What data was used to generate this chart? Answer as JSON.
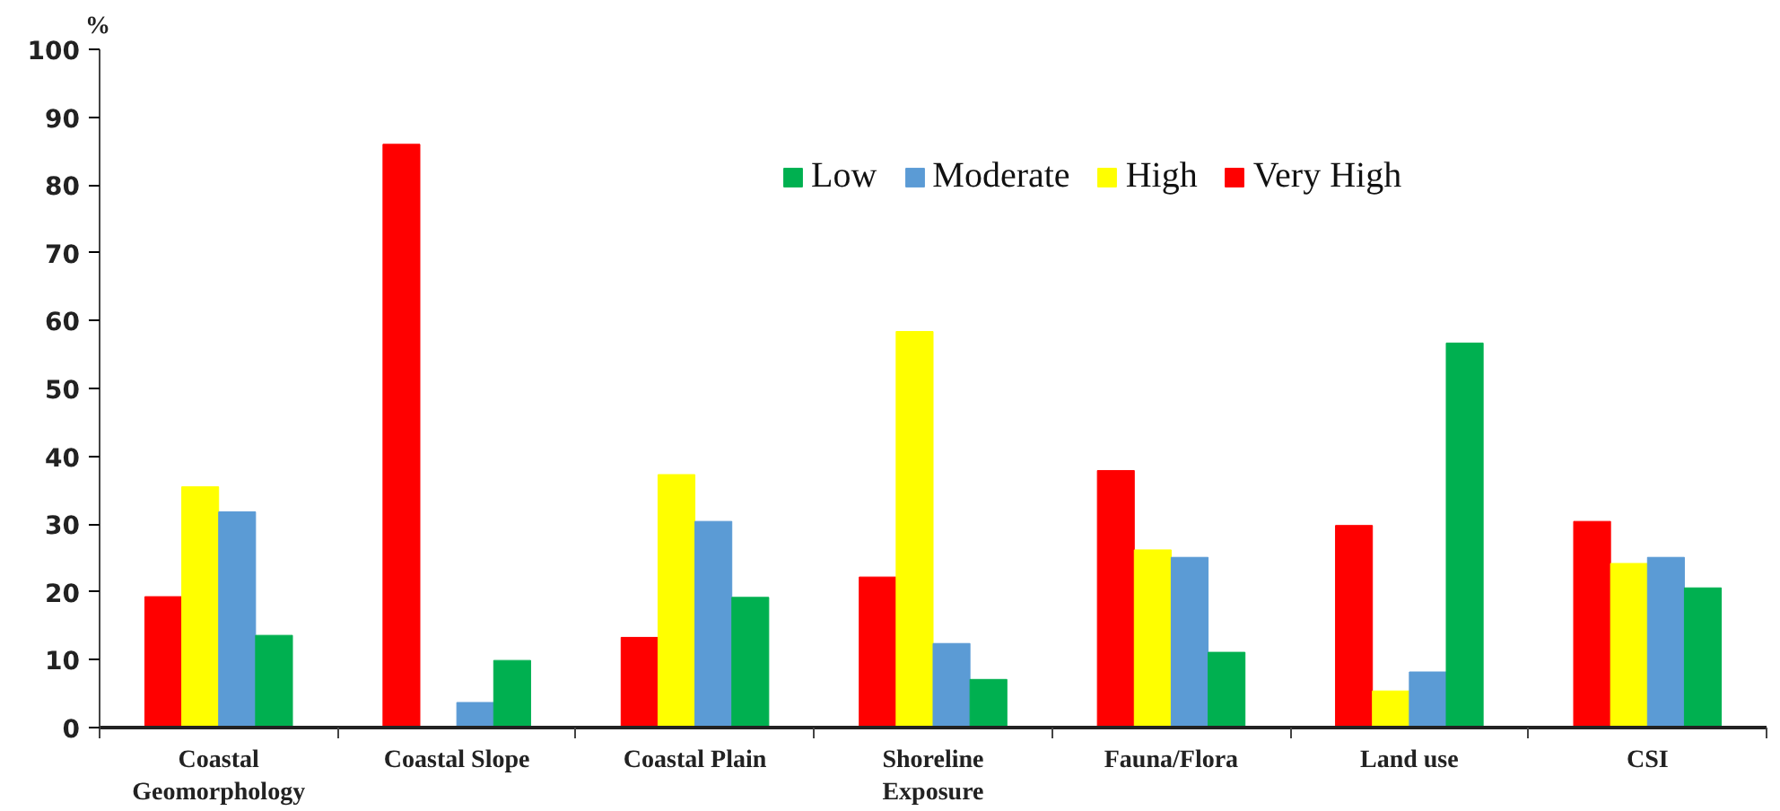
{
  "chart_data": {
    "type": "bar",
    "ylabel": "%",
    "categories": [
      "Coastal Geomorphology",
      "Coastal Slope",
      "Coastal Plain",
      "Shoreline Exposure",
      "Fauna/Flora",
      "Land use",
      "CSI"
    ],
    "series": [
      {
        "name": "Very High",
        "color": "#ff0000",
        "values": [
          19.3,
          86.0,
          13.3,
          22.2,
          37.9,
          29.8,
          30.4
        ]
      },
      {
        "name": "High",
        "color": "#ffff00",
        "values": [
          35.5,
          0,
          37.3,
          58.4,
          26.2,
          5.4,
          24.2
        ]
      },
      {
        "name": "Moderate",
        "color": "#5b9bd5",
        "values": [
          31.8,
          3.7,
          30.4,
          12.4,
          25.1,
          8.2,
          25.1
        ]
      },
      {
        "name": "Low",
        "color": "#00b050",
        "values": [
          13.6,
          9.9,
          19.2,
          7.1,
          11.1,
          56.7,
          20.6
        ]
      }
    ],
    "ylim": [
      0,
      100
    ],
    "yticks": [
      0,
      10,
      20,
      30,
      40,
      50,
      60,
      70,
      80,
      90,
      100
    ],
    "grid": false,
    "legend": "top right"
  }
}
